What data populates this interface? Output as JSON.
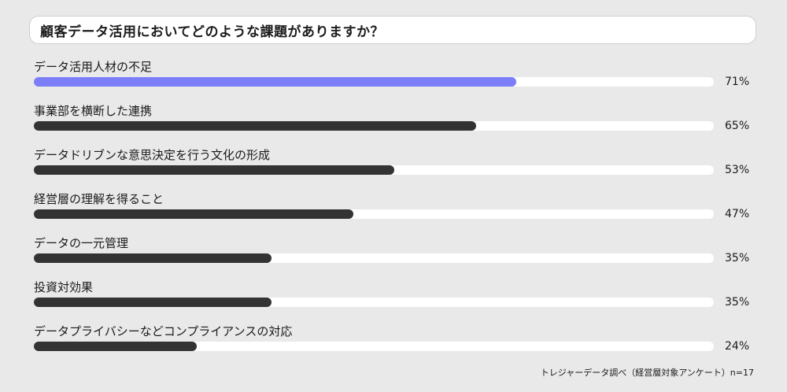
{
  "question": "顧客データ活用においてどのような課題がありますか？",
  "chart_data": {
    "type": "bar",
    "orientation": "horizontal",
    "categories": [
      "データ活用人材の不足",
      "事業部を横断した連携",
      "データドリブンな意思決定を行う文化の形成",
      "経営層の理解を得ること",
      "データの一元管理",
      "投資対効果",
      "データプライバシーなどコンプライアンスの対応"
    ],
    "values": [
      71,
      65,
      53,
      47,
      35,
      35,
      24
    ],
    "value_labels": [
      "71%",
      "65%",
      "53%",
      "47%",
      "35%",
      "35%",
      "24%"
    ],
    "xlim": [
      0,
      100
    ],
    "colors": {
      "highlight": "#7b7ef7",
      "default": "#333333",
      "track": "#ffffff",
      "background": "#e9e9e9"
    },
    "highlight_index": 0
  },
  "source": "トレジャーデータ調べ（経営層対象アンケート）n=17"
}
